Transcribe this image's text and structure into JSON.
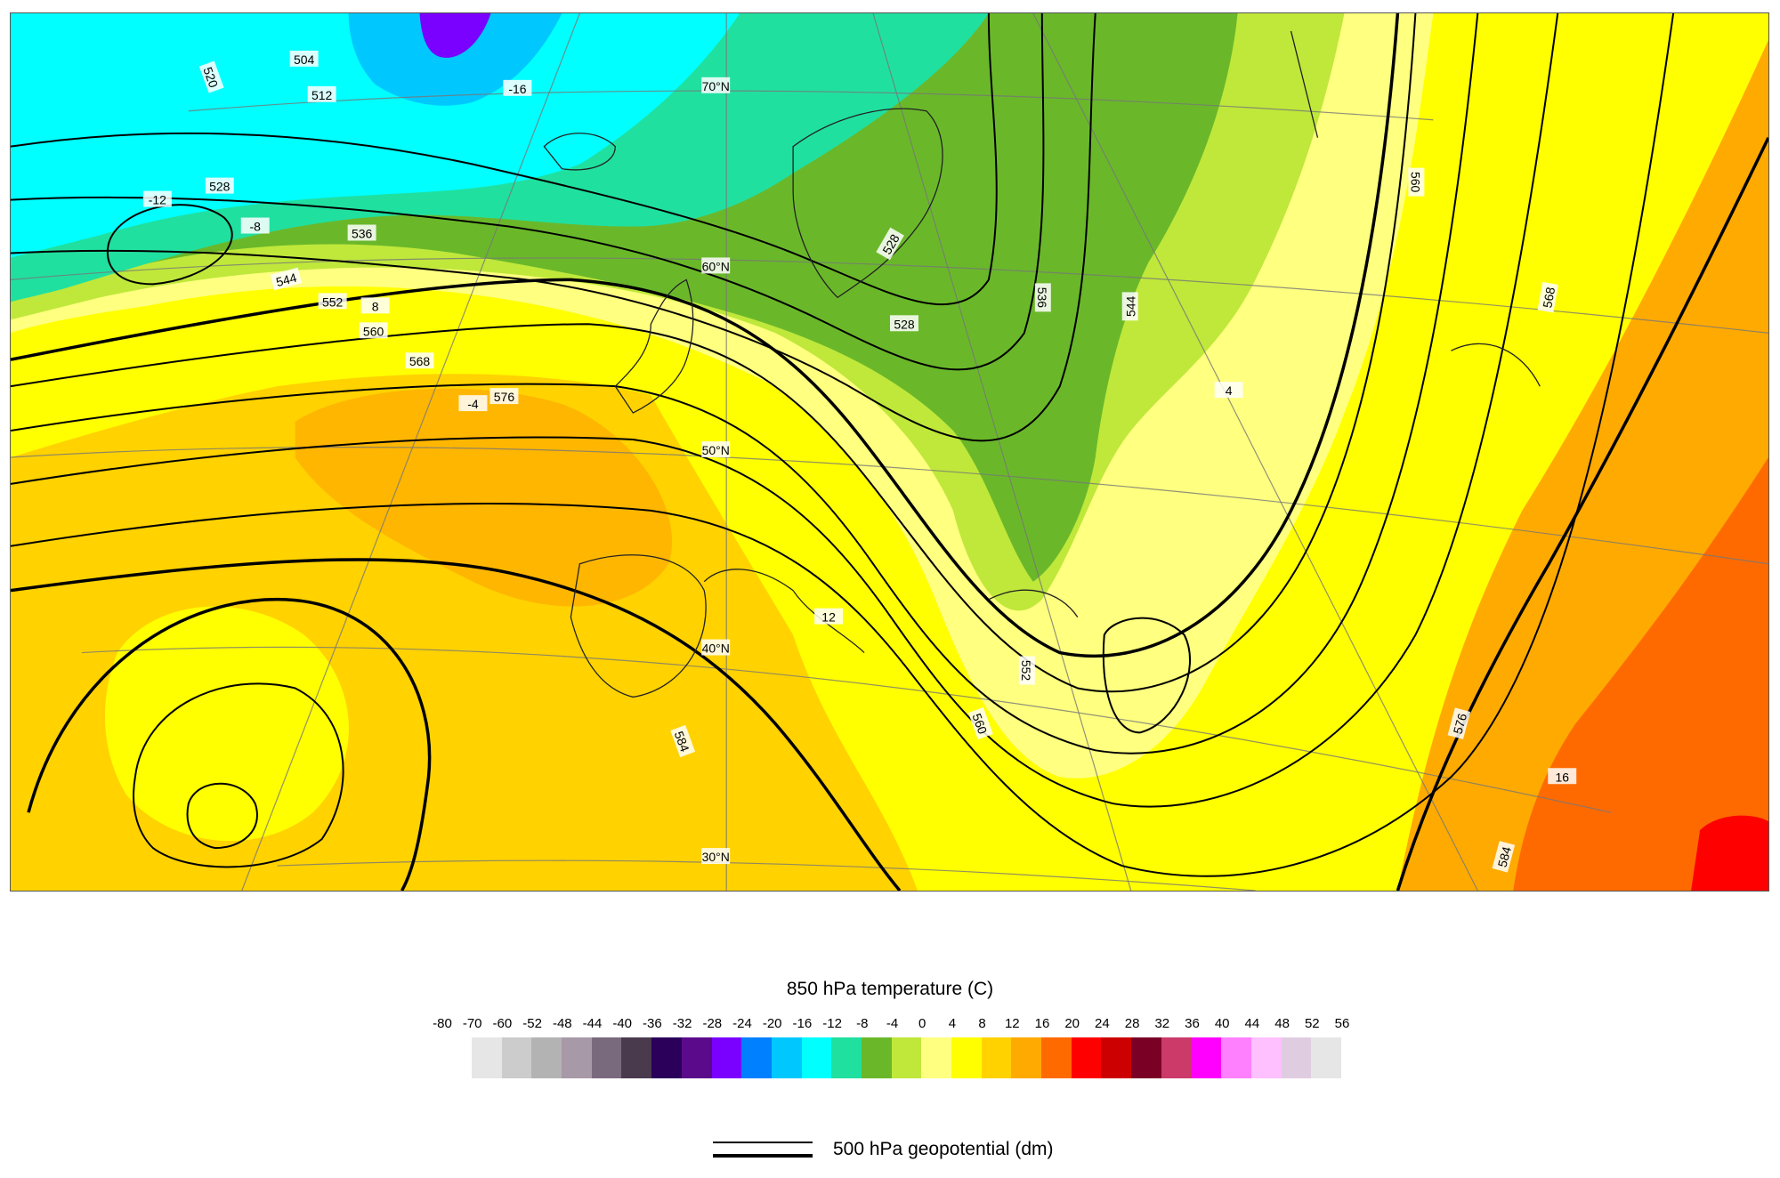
{
  "map": {
    "isohypse_labels": [
      "504",
      "512",
      "520",
      "528",
      "536",
      "544",
      "552",
      "560",
      "568",
      "576",
      "584"
    ],
    "isotherm_labels": [
      "-16",
      "-12",
      "-8",
      "-4",
      "4",
      "8",
      "12",
      "16"
    ],
    "latitude_labels": [
      "70°N",
      "60°N",
      "50°N",
      "40°N",
      "30°N"
    ]
  },
  "legend": {
    "title": "850 hPa temperature (C)",
    "ticks": [
      "-80",
      "-70",
      "-60",
      "-52",
      "-48",
      "-44",
      "-40",
      "-36",
      "-32",
      "-28",
      "-24",
      "-20",
      "-16",
      "-12",
      "-8",
      "-4",
      "0",
      "4",
      "8",
      "12",
      "16",
      "20",
      "24",
      "28",
      "32",
      "36",
      "40",
      "44",
      "48",
      "52",
      "56"
    ],
    "colors": [
      "#e6e6e6",
      "#cccccc",
      "#b3b3b3",
      "#a899a8",
      "#7a6a7e",
      "#4a3a4e",
      "#2a005a",
      "#5a0a8a",
      "#7a00ff",
      "#0080ff",
      "#00c8ff",
      "#00ffff",
      "#20e0a0",
      "#6ab82a",
      "#bfe83a",
      "#ffff80",
      "#ffff00",
      "#ffd200",
      "#ffaa00",
      "#ff6a00",
      "#ff0000",
      "#cc0000",
      "#7a0026",
      "#cc3a6a",
      "#ff00ff",
      "#ff80ff",
      "#ffc0ff",
      "#e0cce0",
      "#e6e6e6"
    ],
    "contour_label": "500 hPa geopotential (dm)"
  }
}
